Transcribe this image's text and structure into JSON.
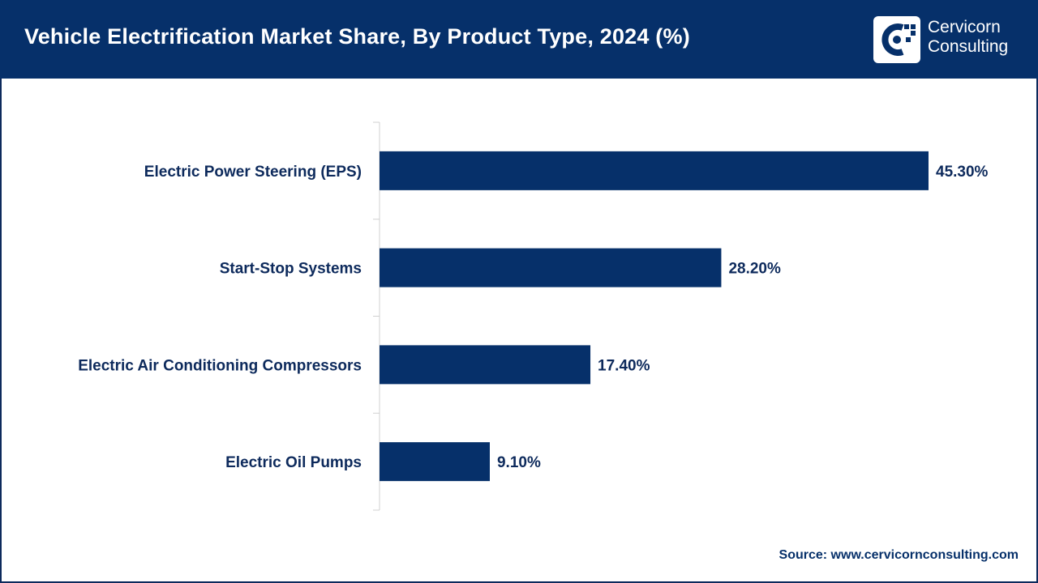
{
  "header": {
    "title": "Vehicle Electrification Market Share, By Product Type, 2024 (%)",
    "logo_line1": "Cervicorn",
    "logo_line2": "Consulting"
  },
  "footer": {
    "source": "Source: www.cervicornconsulting.com"
  },
  "colors": {
    "header_bg": "#06306a",
    "bar": "#06306a",
    "text": "#0d2a5c"
  },
  "chart_data": {
    "type": "bar",
    "orientation": "horizontal",
    "categories": [
      "Electric Power Steering (EPS)",
      "Start-Stop Systems",
      "Electric Air Conditioning Compressors",
      "Electric Oil Pumps"
    ],
    "values": [
      45.3,
      28.2,
      17.4,
      9.1
    ],
    "value_labels": [
      "45.30%",
      "28.20%",
      "17.40%",
      "9.10%"
    ],
    "title": "Vehicle Electrification Market Share, By Product Type, 2024 (%)",
    "xlabel": "",
    "ylabel": "",
    "xlim": [
      0,
      50
    ],
    "grid": false,
    "legend": "none"
  }
}
